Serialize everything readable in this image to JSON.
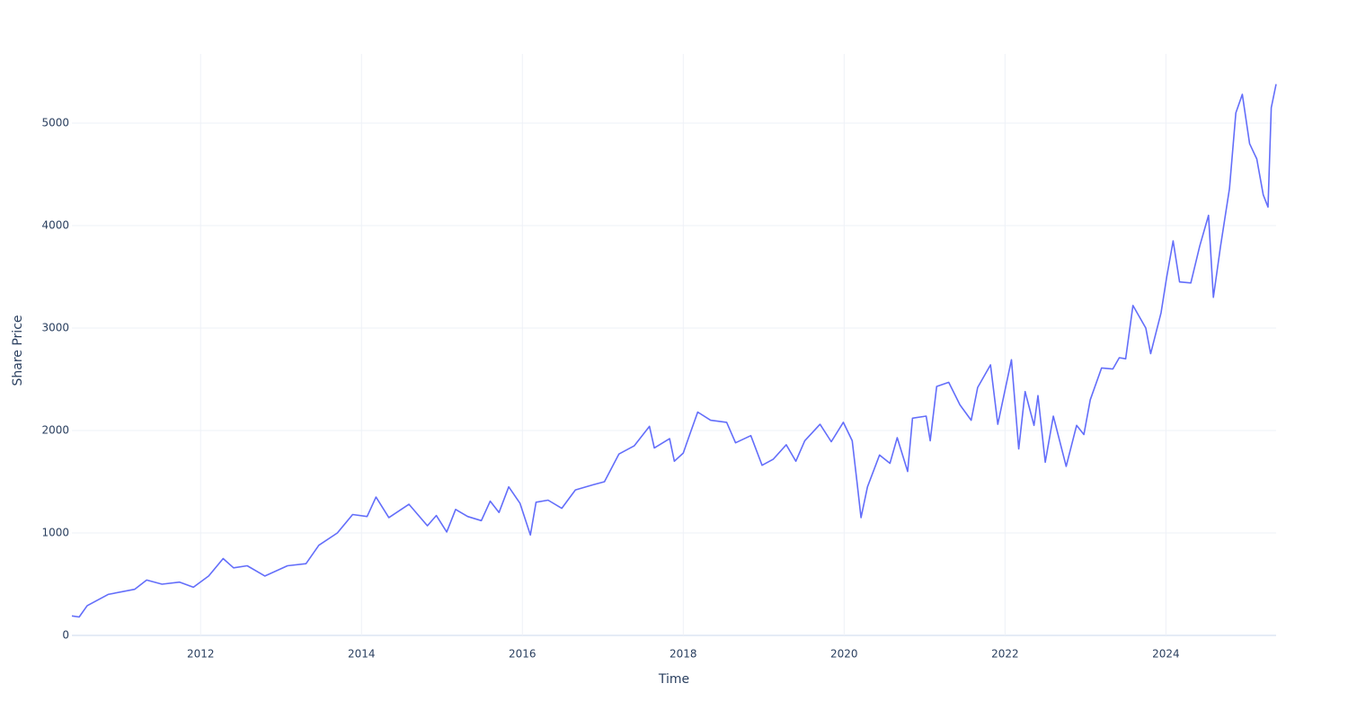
{
  "chart_data": {
    "type": "line",
    "x_label": "Time",
    "y_label": "Share Price",
    "x": [
      2010.4,
      2010.49,
      2010.59,
      2010.85,
      2011.18,
      2011.33,
      2011.52,
      2011.74,
      2011.91,
      2012.1,
      2012.28,
      2012.41,
      2012.58,
      2012.8,
      2013.08,
      2013.31,
      2013.47,
      2013.7,
      2013.89,
      2014.07,
      2014.18,
      2014.34,
      2014.59,
      2014.82,
      2014.93,
      2015.06,
      2015.17,
      2015.32,
      2015.49,
      2015.6,
      2015.71,
      2015.83,
      2015.97,
      2016.1,
      2016.17,
      2016.32,
      2016.49,
      2016.66,
      2016.88,
      2017.02,
      2017.2,
      2017.39,
      2017.58,
      2017.64,
      2017.83,
      2017.89,
      2018.0,
      2018.08,
      2018.18,
      2018.34,
      2018.54,
      2018.65,
      2018.84,
      2018.98,
      2019.12,
      2019.28,
      2019.4,
      2019.51,
      2019.7,
      2019.84,
      2019.99,
      2020.1,
      2020.16,
      2020.21,
      2020.29,
      2020.44,
      2020.57,
      2020.66,
      2020.79,
      2020.85,
      2021.02,
      2021.07,
      2021.15,
      2021.3,
      2021.44,
      2021.58,
      2021.66,
      2021.82,
      2021.91,
      2022.08,
      2022.17,
      2022.25,
      2022.36,
      2022.41,
      2022.5,
      2022.6,
      2022.76,
      2022.89,
      2022.98,
      2023.06,
      2023.2,
      2023.34,
      2023.42,
      2023.5,
      2023.59,
      2023.75,
      2023.81,
      2023.94,
      2024.01,
      2024.09,
      2024.17,
      2024.31,
      2024.42,
      2024.53,
      2024.59,
      2024.68,
      2024.79,
      2024.87,
      2024.95,
      2025.04,
      2025.13,
      2025.21,
      2025.27,
      2025.31,
      2025.37
    ],
    "series": [
      {
        "name": "Share Price",
        "color": "#636efa",
        "values": [
          190,
          180,
          290,
          400,
          450,
          540,
          500,
          520,
          470,
          580,
          750,
          660,
          680,
          580,
          680,
          700,
          880,
          1000,
          1180,
          1160,
          1350,
          1150,
          1280,
          1070,
          1170,
          1010,
          1230,
          1160,
          1120,
          1310,
          1200,
          1450,
          1290,
          980,
          1300,
          1320,
          1240,
          1420,
          1470,
          1500,
          1770,
          1850,
          2040,
          1830,
          1920,
          1700,
          1780,
          1960,
          2180,
          2100,
          2080,
          1880,
          1950,
          1660,
          1720,
          1860,
          1700,
          1900,
          2060,
          1890,
          2080,
          1900,
          1500,
          1150,
          1450,
          1760,
          1680,
          1930,
          1600,
          2120,
          2140,
          1900,
          2430,
          2470,
          2250,
          2100,
          2420,
          2640,
          2060,
          2690,
          1820,
          2380,
          2050,
          2340,
          1690,
          2140,
          1650,
          2050,
          1960,
          2300,
          2610,
          2600,
          2710,
          2700,
          3220,
          3000,
          2750,
          3150,
          3500,
          3850,
          3450,
          3440,
          3800,
          4100,
          3300,
          3800,
          4360,
          5100,
          5280,
          4800,
          4650,
          4300,
          4180,
          5150,
          5380
        ]
      }
    ],
    "xlim": [
      2010.4,
      2025.37
    ],
    "xticks": [
      2012,
      2014,
      2016,
      2018,
      2020,
      2022,
      2024
    ],
    "ylim": [
      0,
      5675
    ],
    "yticks": [
      0,
      1000,
      2000,
      3000,
      4000,
      5000
    ],
    "grid": true
  }
}
